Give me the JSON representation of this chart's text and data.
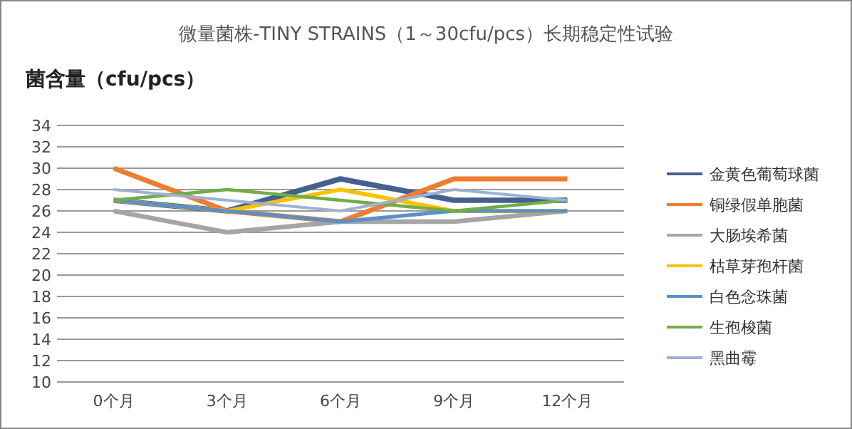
{
  "chart_data": {
    "type": "line",
    "title": "微量菌株-TINY STRAINS（1～30cfu/pcs）长期稳定性试验",
    "ylabel": "菌含量（cfu/pcs）",
    "categories": [
      "0个月",
      "3个月",
      "6个月",
      "9个月",
      "12个月"
    ],
    "series": [
      {
        "name": "金黄色葡萄球菌",
        "color": "#44608f",
        "values": [
          27,
          26,
          29,
          27,
          27
        ]
      },
      {
        "name": "铜绿假单胞菌",
        "color": "#ed7d31",
        "values": [
          30,
          26,
          25,
          29,
          29
        ]
      },
      {
        "name": "大肠埃希菌",
        "color": "#a5a5a5",
        "values": [
          26,
          24,
          25,
          25,
          26
        ]
      },
      {
        "name": "枯草芽孢杆菌",
        "color": "#ffc000",
        "values": [
          27,
          26,
          28,
          26,
          26
        ]
      },
      {
        "name": "白色念珠菌",
        "color": "#5b8fc7",
        "values": [
          27,
          26,
          25,
          26,
          26
        ]
      },
      {
        "name": "生孢梭菌",
        "color": "#70ad47",
        "values": [
          27,
          28,
          27,
          26,
          27
        ]
      },
      {
        "name": "黑曲霉",
        "color": "#9fb0d0",
        "values": [
          28,
          27,
          26,
          28,
          27
        ]
      }
    ],
    "ylim": [
      10,
      34
    ],
    "yticks": [
      10,
      12,
      14,
      16,
      18,
      20,
      22,
      24,
      26,
      28,
      30,
      32,
      34
    ],
    "grid": "y",
    "legend": "right",
    "marker": "none",
    "line_style": "solid"
  }
}
